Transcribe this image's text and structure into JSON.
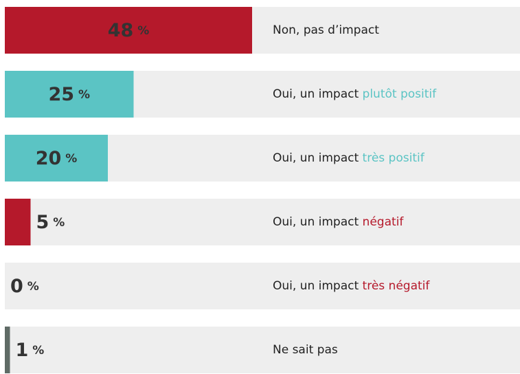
{
  "chart_data": {
    "type": "hbar",
    "categories": [
      [
        "Non, pas d’impact"
      ],
      [
        "Oui, un impact ",
        "plutôt positif"
      ],
      [
        "Oui, un impact ",
        "très positif"
      ],
      [
        "Oui, un impact ",
        "négatif"
      ],
      [
        "Oui, un impact ",
        "très négatif"
      ],
      [
        "Ne sait pas"
      ]
    ],
    "values": [
      48,
      25,
      20,
      5,
      0,
      1
    ],
    "colors": [
      "#b5192b",
      "#5bc4c4",
      "#5bc4c4",
      "#b5192b",
      "#b5192b",
      "#5f6b66"
    ],
    "unit": "%",
    "xlim": [
      0,
      100
    ]
  }
}
